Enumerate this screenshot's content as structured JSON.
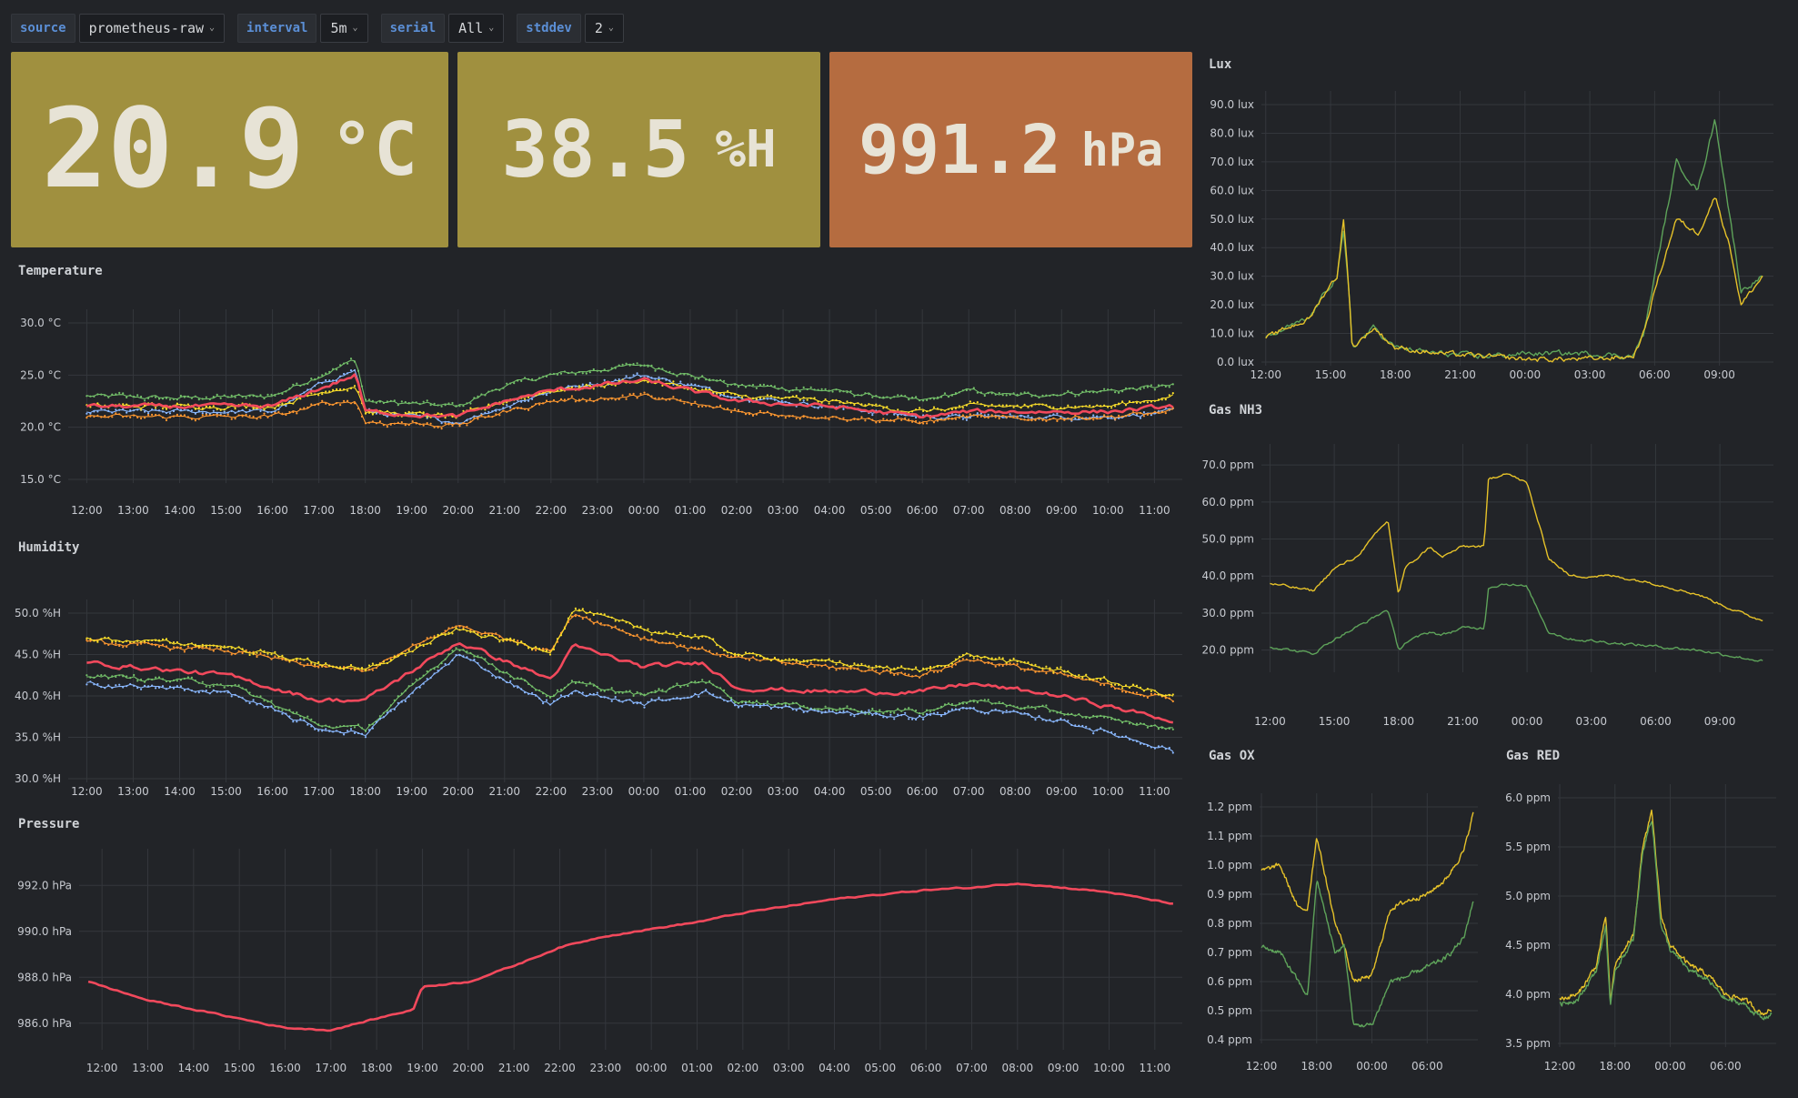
{
  "variables": [
    {
      "label": "source",
      "value": "prometheus-raw"
    },
    {
      "label": "interval",
      "value": "5m"
    },
    {
      "label": "serial",
      "value": "All"
    },
    {
      "label": "stddev",
      "value": "2"
    }
  ],
  "stats": [
    {
      "value": "20.9",
      "unit": "°C",
      "color": "#a0903f"
    },
    {
      "value": "38.5",
      "unit": "%H",
      "color": "#a0903f"
    },
    {
      "value": "991.2",
      "unit": "hPa",
      "color": "#b56c40"
    }
  ],
  "colors": {
    "red": "#f2495c",
    "orange": "#ff9830",
    "yellow": "#fade2a",
    "green": "#73bf69",
    "blue": "#8ab8ff",
    "gas_yellow": "#e6c229",
    "gas_green": "#5ea35a"
  },
  "chart_data": [
    {
      "id": "temperature",
      "title": "Temperature",
      "type": "line",
      "y_ticks": [
        "30.0 °C",
        "25.0 °C",
        "20.0 °C",
        "15.0 °C"
      ],
      "ylim": [
        15,
        30
      ],
      "x_ticks": [
        "12:00",
        "13:00",
        "14:00",
        "15:00",
        "16:00",
        "17:00",
        "18:00",
        "19:00",
        "20:00",
        "21:00",
        "22:00",
        "23:00",
        "00:00",
        "01:00",
        "02:00",
        "03:00",
        "04:00",
        "05:00",
        "06:00",
        "07:00",
        "08:00",
        "09:00",
        "10:00",
        "11:00"
      ],
      "x": [
        0,
        2,
        4,
        5.2,
        5.8,
        6,
        8,
        9,
        10,
        12,
        14,
        16,
        18,
        19,
        20,
        22,
        23.4
      ],
      "series": [
        {
          "color": "green",
          "values": [
            23.0,
            22.8,
            23.0,
            25.3,
            26.5,
            22.5,
            22.0,
            24.0,
            25.0,
            26.0,
            24.0,
            23.5,
            22.5,
            23.5,
            23.0,
            23.5,
            24.0
          ]
        },
        {
          "color": "blue",
          "values": [
            21.5,
            21.5,
            21.5,
            24.5,
            25.5,
            21.5,
            20.5,
            22.0,
            23.5,
            25.0,
            23.0,
            22.0,
            21.0,
            21.0,
            21.0,
            21.0,
            21.5
          ]
        },
        {
          "color": "yellow",
          "values": [
            22.0,
            22.0,
            22.0,
            23.5,
            24.0,
            21.5,
            21.0,
            22.5,
            23.5,
            24.5,
            23.0,
            22.5,
            21.5,
            22.0,
            22.0,
            22.0,
            23.0
          ]
        },
        {
          "color": "orange",
          "values": [
            21.0,
            21.0,
            21.0,
            22.3,
            22.5,
            20.5,
            20.2,
            21.5,
            22.5,
            23.0,
            21.5,
            21.0,
            20.5,
            21.0,
            20.8,
            21.0,
            21.5
          ]
        },
        {
          "color": "red",
          "values": [
            22.0,
            22.0,
            22.0,
            24.0,
            25.0,
            21.5,
            21.0,
            22.5,
            23.5,
            24.5,
            22.5,
            22.0,
            21.0,
            21.5,
            21.5,
            21.5,
            22.0
          ]
        }
      ]
    },
    {
      "id": "humidity",
      "title": "Humidity",
      "type": "line",
      "y_ticks": [
        "50.0 %H",
        "45.0 %H",
        "40.0 %H",
        "35.0 %H",
        "30.0 %H"
      ],
      "ylim": [
        30,
        50
      ],
      "x_ticks": [
        "12:00",
        "13:00",
        "14:00",
        "15:00",
        "16:00",
        "17:00",
        "18:00",
        "19:00",
        "20:00",
        "21:00",
        "22:00",
        "23:00",
        "00:00",
        "01:00",
        "02:00",
        "03:00",
        "04:00",
        "05:00",
        "06:00",
        "07:00",
        "08:00",
        "09:00",
        "10:00",
        "11:00"
      ],
      "x": [
        0,
        3,
        5,
        6,
        8,
        10,
        10.5,
        12,
        13.3,
        14,
        16,
        18,
        19,
        21,
        23.4
      ],
      "series": [
        {
          "color": "orange",
          "values": [
            46.5,
            45.5,
            43.5,
            43.0,
            48.5,
            45.5,
            50.0,
            47.0,
            45.5,
            44.5,
            43.5,
            42.5,
            44.5,
            42.5,
            39.5
          ]
        },
        {
          "color": "yellow",
          "values": [
            47.0,
            46.0,
            44.0,
            43.0,
            48.0,
            45.5,
            50.5,
            48.0,
            47.0,
            45.0,
            44.0,
            43.0,
            45.0,
            43.0,
            40.0
          ]
        },
        {
          "color": "green",
          "values": [
            42.5,
            41.5,
            36.5,
            36.0,
            46.0,
            40.0,
            41.5,
            40.0,
            42.0,
            39.5,
            38.5,
            38.0,
            39.5,
            38.0,
            36.0
          ]
        },
        {
          "color": "blue",
          "values": [
            41.5,
            40.5,
            36.0,
            35.5,
            45.0,
            39.0,
            40.5,
            39.0,
            40.5,
            39.0,
            38.0,
            37.5,
            38.5,
            37.0,
            33.5
          ]
        },
        {
          "color": "red",
          "values": [
            44.0,
            42.5,
            39.5,
            39.5,
            46.5,
            42.0,
            46.0,
            43.5,
            44.0,
            41.0,
            40.5,
            40.5,
            41.5,
            40.0,
            37.0
          ]
        }
      ]
    },
    {
      "id": "pressure",
      "title": "Pressure",
      "type": "line",
      "y_ticks": [
        "992.0 hPa",
        "990.0 hPa",
        "988.0 hPa",
        "986.0 hPa"
      ],
      "ylim": [
        985,
        993
      ],
      "x_ticks": [
        "12:00",
        "13:00",
        "14:00",
        "15:00",
        "16:00",
        "17:00",
        "18:00",
        "19:00",
        "20:00",
        "21:00",
        "22:00",
        "23:00",
        "00:00",
        "01:00",
        "02:00",
        "03:00",
        "04:00",
        "05:00",
        "06:00",
        "07:00",
        "08:00",
        "09:00",
        "10:00",
        "11:00"
      ],
      "x": [
        -0.3,
        1,
        3,
        4,
        5,
        6,
        6.8,
        7,
        8,
        9,
        10,
        11,
        12,
        13,
        14,
        15,
        16,
        17,
        18,
        19,
        20,
        21,
        22,
        23.4
      ],
      "series": [
        {
          "color": "red",
          "values": [
            987.8,
            987.0,
            986.2,
            985.8,
            985.7,
            986.2,
            986.6,
            987.6,
            987.8,
            988.5,
            989.3,
            989.8,
            990.1,
            990.4,
            990.8,
            991.1,
            991.4,
            991.6,
            991.8,
            991.9,
            992.1,
            991.9,
            991.7,
            991.2
          ]
        }
      ]
    },
    {
      "id": "lux",
      "title": "Lux",
      "type": "line",
      "y_ticks": [
        "90.0 lux",
        "80.0 lux",
        "70.0 lux",
        "60.0 lux",
        "50.0 lux",
        "40.0 lux",
        "30.0 lux",
        "20.0 lux",
        "10.0 lux",
        "0.0 lux"
      ],
      "ylim": [
        0,
        90
      ],
      "x_ticks": [
        "12:00",
        "15:00",
        "18:00",
        "21:00",
        "00:00",
        "03:00",
        "06:00",
        "09:00"
      ],
      "x": [
        0,
        1,
        2,
        2.8,
        3.3,
        3.6,
        3.9,
        4,
        5,
        6,
        8,
        10,
        12,
        14,
        15,
        17,
        17.5,
        18,
        19,
        20,
        20.8,
        21.5,
        22,
        23
      ],
      "series": [
        {
          "color": "gas_green",
          "values": [
            8,
            12,
            15,
            25,
            30,
            45,
            20,
            5,
            12,
            5,
            3,
            2,
            3,
            3,
            3,
            2,
            10,
            30,
            70,
            60,
            85,
            50,
            25,
            30
          ]
        },
        {
          "color": "gas_yellow",
          "values": [
            8,
            12,
            15,
            25,
            30,
            50,
            20,
            5,
            12,
            5,
            3,
            2,
            1,
            1,
            1,
            2,
            10,
            25,
            50,
            45,
            58,
            40,
            20,
            30
          ]
        }
      ]
    },
    {
      "id": "gas_nh3",
      "title": "Gas NH3",
      "type": "line",
      "y_ticks": [
        "70.0 ppm",
        "60.0 ppm",
        "50.0 ppm",
        "40.0 ppm",
        "30.0 ppm",
        "20.0 ppm"
      ],
      "ylim": [
        15,
        72
      ],
      "x_ticks": [
        "12:00",
        "15:00",
        "18:00",
        "21:00",
        "00:00",
        "03:00",
        "06:00",
        "09:00"
      ],
      "x": [
        0,
        2,
        3,
        4,
        5.5,
        6,
        6.3,
        7.5,
        8,
        9,
        10,
        10.2,
        11,
        12,
        13,
        14,
        16,
        18,
        20,
        22,
        23
      ],
      "series": [
        {
          "color": "gas_yellow",
          "values": [
            38,
            36,
            42,
            45,
            55,
            35,
            42,
            48,
            45,
            48,
            48,
            66,
            68,
            65,
            45,
            40,
            40,
            38,
            35,
            30,
            28
          ]
        },
        {
          "color": "gas_green",
          "values": [
            21,
            19,
            23,
            26,
            31,
            20,
            22,
            25,
            24,
            26,
            26,
            37,
            38,
            37,
            25,
            23,
            22,
            21,
            20,
            18,
            17
          ]
        }
      ]
    },
    {
      "id": "gas_ox",
      "title": "Gas OX",
      "type": "line",
      "y_ticks": [
        "1.2 ppm",
        "1.1 ppm",
        "1.0 ppm",
        "0.9 ppm",
        "0.8 ppm",
        "0.7 ppm",
        "0.6 ppm",
        "0.5 ppm",
        "0.4 ppm"
      ],
      "ylim": [
        0.4,
        1.2
      ],
      "x_ticks": [
        "12:00",
        "18:00",
        "00:00",
        "06:00"
      ],
      "x": [
        0,
        2,
        4,
        5,
        6,
        8,
        9,
        10,
        12,
        14,
        16,
        18,
        20,
        22,
        23
      ],
      "series": [
        {
          "color": "gas_yellow",
          "values": [
            0.98,
            1.0,
            0.85,
            0.85,
            1.1,
            0.8,
            0.72,
            0.6,
            0.62,
            0.85,
            0.88,
            0.9,
            0.95,
            1.05,
            1.18
          ]
        },
        {
          "color": "gas_green",
          "values": [
            0.72,
            0.7,
            0.6,
            0.55,
            0.95,
            0.7,
            0.72,
            0.45,
            0.45,
            0.6,
            0.62,
            0.65,
            0.68,
            0.75,
            0.88
          ]
        }
      ]
    },
    {
      "id": "gas_red",
      "title": "Gas RED",
      "type": "line",
      "y_ticks": [
        "6.0 ppm",
        "5.5 ppm",
        "5.0 ppm",
        "4.5 ppm",
        "4.0 ppm",
        "3.5 ppm"
      ],
      "ylim": [
        3.5,
        6.0
      ],
      "x_ticks": [
        "12:00",
        "18:00",
        "00:00",
        "06:00"
      ],
      "x": [
        0,
        2,
        4,
        5,
        5.5,
        6,
        8,
        9,
        10,
        11,
        12,
        14,
        16,
        18,
        20,
        22,
        23
      ],
      "series": [
        {
          "color": "gas_yellow",
          "values": [
            3.95,
            4.0,
            4.3,
            4.8,
            3.9,
            4.3,
            4.6,
            5.5,
            5.85,
            4.8,
            4.5,
            4.3,
            4.2,
            4.0,
            3.95,
            3.8,
            3.85
          ]
        },
        {
          "color": "gas_green",
          "values": [
            3.9,
            3.95,
            4.25,
            4.7,
            3.85,
            4.25,
            4.55,
            5.45,
            5.8,
            4.7,
            4.45,
            4.25,
            4.15,
            3.95,
            3.9,
            3.75,
            3.8
          ]
        }
      ]
    }
  ]
}
